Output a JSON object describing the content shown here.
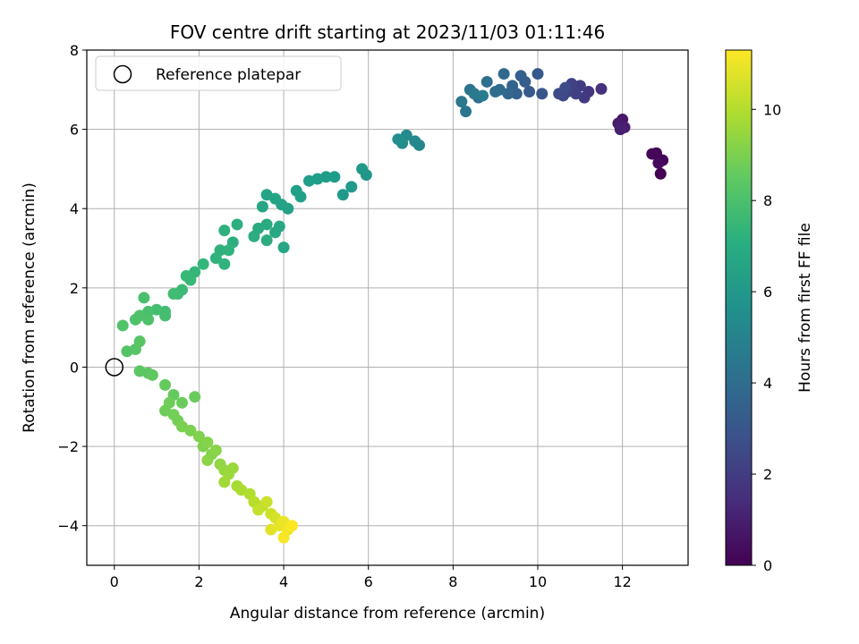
{
  "chart_data": {
    "type": "scatter",
    "title": "FOV centre drift starting at 2023/11/03 01:11:46",
    "xlabel": "Angular distance from reference (arcmin)",
    "ylabel": "Rotation from reference (arcmin)",
    "xlim": [
      -0.65,
      13.55
    ],
    "ylim": [
      -5.0,
      8.0
    ],
    "xticks": [
      "0",
      "2",
      "4",
      "6",
      "8",
      "10",
      "12"
    ],
    "yticks": [
      "−4",
      "−2",
      "0",
      "2",
      "4",
      "6",
      "8"
    ],
    "grid": true,
    "legend": {
      "location": "upper-left",
      "entries": [
        "Reference platepar"
      ]
    },
    "reference_point": {
      "x": 0,
      "y": 0,
      "label": "Reference platepar"
    },
    "colorbar": {
      "label": "Hours from first FF file",
      "colormap": "viridis",
      "range": [
        0,
        11.3
      ],
      "ticks": [
        "0",
        "2",
        "4",
        "6",
        "8",
        "10"
      ]
    },
    "series": [
      {
        "points": [
          [
            12.9,
            4.88,
            0.0
          ],
          [
            12.95,
            5.22,
            0.1
          ],
          [
            12.8,
            5.4,
            0.15
          ],
          [
            12.7,
            5.38,
            0.2
          ],
          [
            12.85,
            5.15,
            0.3
          ],
          [
            12.0,
            6.25,
            0.7
          ],
          [
            11.9,
            6.15,
            0.8
          ],
          [
            12.05,
            6.05,
            0.9
          ],
          [
            11.95,
            6.0,
            1.0
          ],
          [
            11.5,
            7.02,
            1.6
          ],
          [
            11.2,
            6.95,
            1.8
          ],
          [
            11.1,
            6.8,
            1.9
          ],
          [
            11.0,
            7.1,
            2.0
          ],
          [
            10.9,
            6.9,
            2.1
          ],
          [
            10.8,
            7.15,
            2.2
          ],
          [
            10.7,
            6.95,
            2.3
          ],
          [
            10.6,
            6.85,
            2.4
          ],
          [
            10.5,
            6.9,
            2.5
          ],
          [
            10.65,
            7.05,
            2.6
          ],
          [
            10.1,
            6.9,
            3.0
          ],
          [
            10.0,
            7.4,
            3.1
          ],
          [
            9.8,
            6.95,
            3.2
          ],
          [
            9.7,
            7.2,
            3.3
          ],
          [
            9.6,
            7.35,
            3.4
          ],
          [
            9.5,
            6.9,
            3.5
          ],
          [
            9.4,
            7.1,
            3.6
          ],
          [
            9.3,
            6.9,
            3.7
          ],
          [
            9.2,
            7.4,
            3.8
          ],
          [
            9.1,
            7.0,
            3.9
          ],
          [
            9.0,
            6.95,
            4.0
          ],
          [
            8.8,
            7.2,
            4.1
          ],
          [
            8.6,
            6.8,
            4.2
          ],
          [
            8.4,
            7.0,
            4.3
          ],
          [
            8.3,
            6.45,
            4.4
          ],
          [
            8.2,
            6.7,
            4.5
          ],
          [
            8.5,
            6.9,
            4.6
          ],
          [
            8.7,
            6.85,
            4.7
          ],
          [
            7.2,
            5.6,
            5.2
          ],
          [
            7.1,
            5.7,
            5.3
          ],
          [
            6.9,
            5.85,
            5.4
          ],
          [
            6.8,
            5.65,
            5.5
          ],
          [
            6.7,
            5.75,
            5.6
          ],
          [
            5.95,
            4.85,
            5.9
          ],
          [
            5.85,
            5.0,
            6.0
          ],
          [
            5.6,
            4.55,
            6.1
          ],
          [
            5.4,
            4.35,
            6.1
          ],
          [
            5.2,
            4.8,
            6.2
          ],
          [
            5.0,
            4.8,
            6.2
          ],
          [
            4.8,
            4.75,
            6.3
          ],
          [
            4.6,
            4.7,
            6.3
          ],
          [
            4.4,
            4.3,
            6.4
          ],
          [
            4.3,
            4.45,
            6.4
          ],
          [
            4.1,
            4.0,
            6.5
          ],
          [
            3.95,
            4.1,
            6.5
          ],
          [
            3.8,
            4.25,
            6.6
          ],
          [
            3.6,
            4.35,
            6.6
          ],
          [
            3.5,
            4.05,
            6.7
          ],
          [
            4.0,
            3.02,
            6.7
          ],
          [
            3.9,
            3.55,
            6.8
          ],
          [
            3.8,
            3.4,
            6.8
          ],
          [
            3.6,
            3.6,
            6.9
          ],
          [
            3.4,
            3.5,
            6.9
          ],
          [
            3.6,
            3.2,
            7.0
          ],
          [
            3.3,
            3.3,
            7.0
          ],
          [
            2.9,
            3.6,
            7.1
          ],
          [
            2.8,
            3.15,
            7.1
          ],
          [
            2.6,
            3.45,
            7.2
          ],
          [
            2.5,
            2.95,
            7.2
          ],
          [
            2.6,
            2.6,
            7.3
          ],
          [
            2.4,
            2.75,
            7.3
          ],
          [
            2.7,
            2.95,
            7.3
          ],
          [
            2.1,
            2.6,
            7.5
          ],
          [
            1.9,
            2.4,
            7.5
          ],
          [
            1.8,
            2.2,
            7.6
          ],
          [
            1.7,
            2.3,
            7.6
          ],
          [
            1.6,
            1.95,
            7.7
          ],
          [
            1.5,
            1.85,
            7.7
          ],
          [
            1.4,
            1.85,
            7.8
          ],
          [
            1.2,
            1.4,
            7.8
          ],
          [
            1.2,
            1.3,
            7.9
          ],
          [
            1.0,
            1.45,
            7.9
          ],
          [
            0.8,
            1.4,
            8.0
          ],
          [
            0.7,
            1.75,
            8.0
          ],
          [
            0.6,
            1.3,
            8.1
          ],
          [
            0.5,
            1.2,
            8.1
          ],
          [
            0.8,
            1.2,
            8.1
          ],
          [
            0.2,
            1.05,
            8.2
          ],
          [
            0.3,
            0.4,
            8.2
          ],
          [
            0.5,
            0.45,
            8.3
          ],
          [
            0.6,
            0.65,
            8.3
          ],
          [
            0.6,
            -0.1,
            8.4
          ],
          [
            0.8,
            -0.15,
            8.4
          ],
          [
            0.9,
            -0.2,
            8.5
          ],
          [
            1.2,
            -0.45,
            8.6
          ],
          [
            1.4,
            -0.7,
            8.6
          ],
          [
            1.6,
            -0.9,
            8.7
          ],
          [
            1.9,
            -0.75,
            8.7
          ],
          [
            1.3,
            -0.9,
            8.8
          ],
          [
            1.2,
            -1.1,
            8.8
          ],
          [
            1.4,
            -1.2,
            8.9
          ],
          [
            1.5,
            -1.35,
            8.9
          ],
          [
            1.6,
            -1.5,
            9.0
          ],
          [
            1.8,
            -1.6,
            9.0
          ],
          [
            2.0,
            -1.75,
            9.1
          ],
          [
            2.1,
            -2.0,
            9.1
          ],
          [
            2.2,
            -1.9,
            9.2
          ],
          [
            2.3,
            -2.2,
            9.2
          ],
          [
            2.2,
            -2.35,
            9.3
          ],
          [
            2.4,
            -2.1,
            9.3
          ],
          [
            2.5,
            -2.45,
            9.4
          ],
          [
            2.6,
            -2.6,
            9.5
          ],
          [
            2.7,
            -2.7,
            9.6
          ],
          [
            2.8,
            -2.55,
            9.6
          ],
          [
            2.6,
            -2.9,
            9.7
          ],
          [
            2.9,
            -3.0,
            9.8
          ],
          [
            3.0,
            -3.1,
            9.9
          ],
          [
            3.2,
            -3.2,
            10.0
          ],
          [
            3.3,
            -3.4,
            10.1
          ],
          [
            3.5,
            -3.5,
            10.2
          ],
          [
            3.4,
            -3.6,
            10.3
          ],
          [
            3.6,
            -3.4,
            10.4
          ],
          [
            3.7,
            -3.7,
            10.5
          ],
          [
            3.8,
            -3.8,
            10.6
          ],
          [
            3.7,
            -4.1,
            10.8
          ],
          [
            3.9,
            -4.0,
            10.9
          ],
          [
            4.0,
            -3.9,
            11.0
          ],
          [
            4.1,
            -4.1,
            11.1
          ],
          [
            4.0,
            -4.3,
            11.2
          ],
          [
            4.2,
            -4.0,
            11.3
          ]
        ]
      }
    ]
  }
}
